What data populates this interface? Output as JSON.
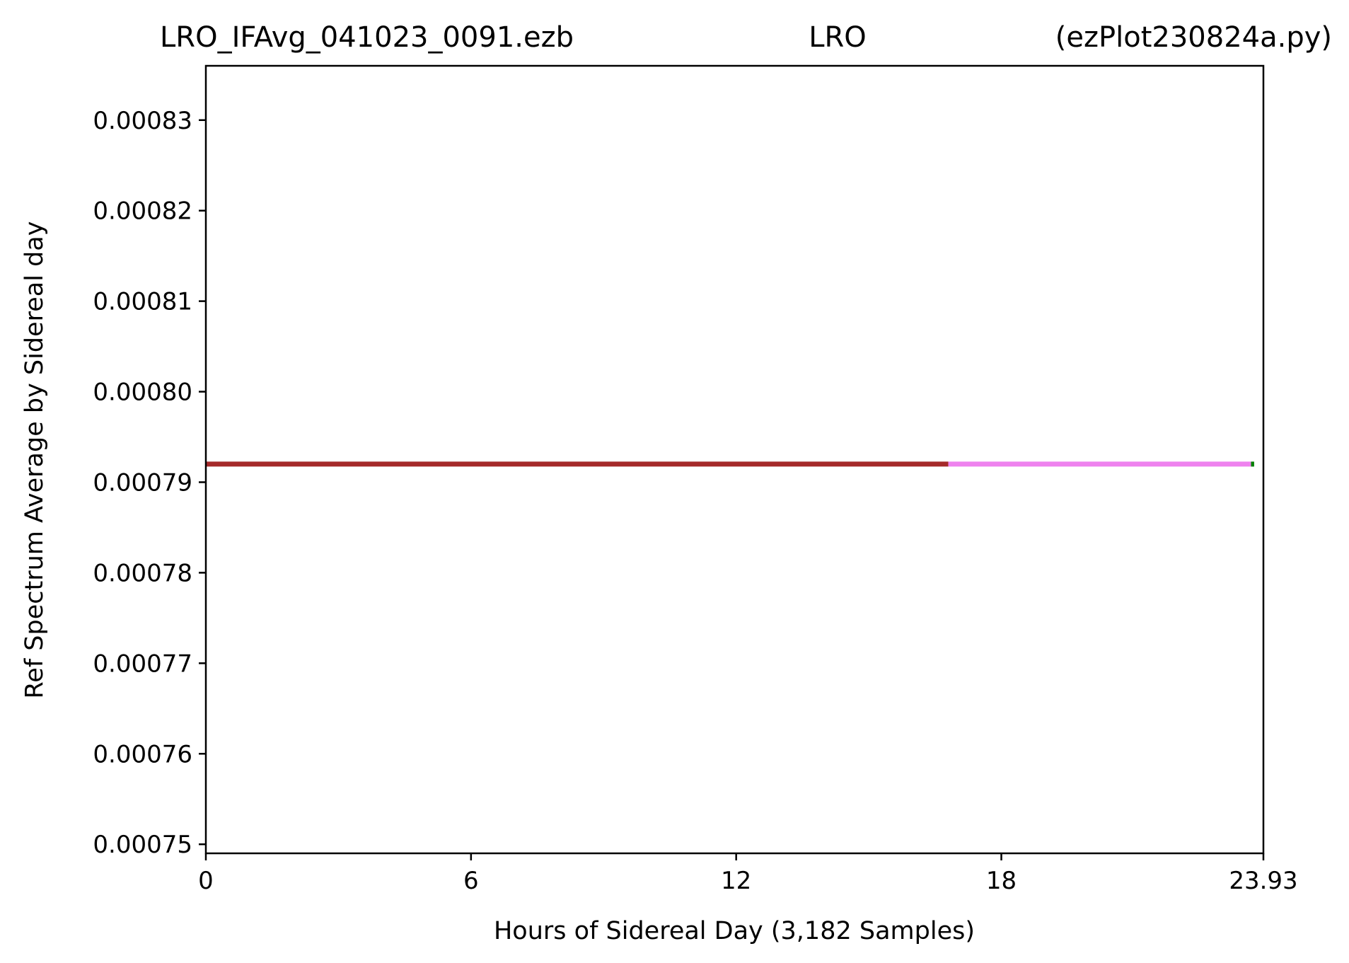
{
  "chart_data": {
    "type": "line",
    "title_left": "LRO_IFAvg_041023_0091.ezb",
    "title_center": "LRO",
    "title_right": "(ezPlot230824a.py)",
    "xlabel": "Hours of Sidereal Day  (3,182 Samples)",
    "ylabel": "Ref Spectrum Average by Sidereal day",
    "xlim": [
      0,
      23.93
    ],
    "ylim": [
      0.000749,
      0.000836
    ],
    "x_ticks": [
      0,
      6,
      12,
      18,
      23.93
    ],
    "x_tick_labels": [
      "0",
      "6",
      "12",
      "18",
      "23.93"
    ],
    "y_ticks": [
      0.00075,
      0.00076,
      0.00077,
      0.00078,
      0.00079,
      0.0008,
      0.00081,
      0.00082,
      0.00083
    ],
    "y_tick_labels": [
      "0.00075",
      "0.00076",
      "0.00077",
      "0.00078",
      "0.00079",
      "0.00080",
      "0.00081",
      "0.00082",
      "0.00083"
    ],
    "grid": false,
    "series": [
      {
        "color": "#a52a2a",
        "x": [
          0,
          16.8
        ],
        "y": [
          0.000792,
          0.000792
        ]
      },
      {
        "color": "#ee82ee",
        "x": [
          16.8,
          23.65
        ],
        "y": [
          0.000792,
          0.000792
        ]
      },
      {
        "color": "#008000",
        "x": [
          23.65,
          23.72
        ],
        "y": [
          0.000792,
          0.000792
        ]
      }
    ]
  }
}
